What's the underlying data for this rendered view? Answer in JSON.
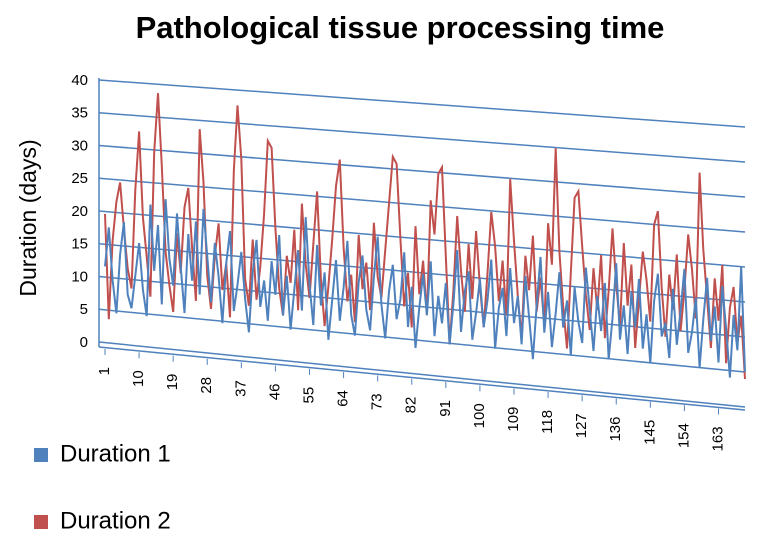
{
  "chart_data": {
    "type": "line",
    "title": "Pathological tissue processing time",
    "y_label": "Duration (days)",
    "x": [
      1,
      2,
      3,
      4,
      5,
      6,
      7,
      8,
      9,
      10,
      11,
      12,
      13,
      14,
      15,
      16,
      17,
      18,
      19,
      20,
      21,
      22,
      23,
      24,
      25,
      26,
      27,
      28,
      29,
      30,
      31,
      32,
      33,
      34,
      35,
      36,
      37,
      38,
      39,
      40,
      41,
      42,
      43,
      44,
      45,
      46,
      47,
      48,
      49,
      50,
      51,
      52,
      53,
      54,
      55,
      56,
      57,
      58,
      59,
      60,
      61,
      62,
      63,
      64,
      65,
      66,
      67,
      68,
      69,
      70,
      71,
      72,
      73,
      74,
      75,
      76,
      77,
      78,
      79,
      80,
      81,
      82,
      83,
      84,
      85,
      86,
      87,
      88,
      89,
      90,
      91,
      92,
      93,
      94,
      95,
      96,
      97,
      98,
      99,
      100,
      101,
      102,
      103,
      104,
      105,
      106,
      107,
      108,
      109,
      110,
      111,
      112,
      113,
      114,
      115,
      116,
      117,
      118,
      119,
      120,
      121,
      122,
      123,
      124,
      125,
      126,
      127,
      128,
      129,
      130,
      131,
      132,
      133,
      134,
      135,
      136,
      137,
      138,
      139,
      140,
      141,
      142,
      143,
      144,
      145,
      146,
      147,
      148,
      149,
      150,
      151,
      152,
      153,
      154,
      155,
      156,
      157,
      158,
      159,
      160,
      161,
      162,
      163,
      164,
      165,
      166,
      167,
      168,
      169,
      170
    ],
    "series": [
      {
        "name": "Duration 1",
        "color": "#4f81bd",
        "values": [
          12,
          18,
          10,
          5,
          14,
          19,
          8,
          6,
          11,
          16,
          9,
          5,
          22,
          12,
          19,
          7,
          23,
          14,
          10,
          21,
          13,
          6,
          18,
          11,
          20,
          9,
          22,
          15,
          8,
          17,
          12,
          5,
          14,
          19,
          7,
          11,
          16,
          9,
          4,
          13,
          18,
          8,
          12,
          6,
          15,
          10,
          19,
          7,
          13,
          5,
          11,
          17,
          8,
          22,
          12,
          6,
          18,
          9,
          14,
          4,
          10,
          16,
          7,
          12,
          19,
          8,
          5,
          13,
          17,
          9,
          6,
          14,
          20,
          10,
          5,
          12,
          16,
          8,
          11,
          18,
          7,
          13,
          4,
          10,
          15,
          9,
          17,
          6,
          12,
          8,
          14,
          5,
          11,
          19,
          7,
          13,
          16,
          6,
          10,
          15,
          8,
          12,
          18,
          5,
          11,
          14,
          7,
          17,
          9,
          13,
          6,
          16,
          10,
          4,
          12,
          19,
          8,
          14,
          6,
          11,
          17,
          9,
          13,
          5,
          15,
          10,
          7,
          18,
          12,
          6,
          14,
          9,
          16,
          5,
          11,
          19,
          8,
          13,
          6,
          15,
          10,
          17,
          7,
          12,
          5,
          14,
          18,
          9,
          11,
          6,
          16,
          8,
          13,
          19,
          7,
          10,
          15,
          5,
          12,
          18,
          9,
          14,
          6,
          17,
          11,
          4,
          13,
          8,
          20,
          5
        ]
      },
      {
        "name": "Duration 2",
        "color": "#c0504d",
        "values": [
          20,
          4,
          16,
          22,
          25,
          18,
          12,
          9,
          24,
          33,
          20,
          14,
          8,
          30,
          39,
          28,
          15,
          10,
          6,
          18,
          12,
          22,
          25,
          16,
          8,
          34,
          26,
          12,
          7,
          15,
          20,
          10,
          14,
          6,
          28,
          38,
          30,
          12,
          8,
          18,
          9,
          14,
          22,
          33,
          32,
          20,
          11,
          7,
          16,
          12,
          20,
          8,
          24,
          15,
          10,
          18,
          26,
          13,
          6,
          12,
          19,
          27,
          31,
          18,
          10,
          14,
          7,
          20,
          12,
          16,
          9,
          22,
          14,
          11,
          18,
          25,
          32,
          31,
          20,
          10,
          15,
          7,
          22,
          12,
          17,
          9,
          26,
          21,
          30,
          31,
          18,
          5,
          13,
          24,
          16,
          10,
          20,
          12,
          22,
          14,
          8,
          16,
          25,
          20,
          12,
          18,
          10,
          30,
          21,
          13,
          7,
          19,
          14,
          22,
          11,
          16,
          9,
          24,
          18,
          35,
          20,
          12,
          6,
          17,
          28,
          29,
          21,
          14,
          9,
          18,
          12,
          20,
          8,
          15,
          24,
          16,
          10,
          22,
          13,
          19,
          7,
          14,
          21,
          17,
          11,
          25,
          27,
          16,
          9,
          18,
          13,
          21,
          10,
          16,
          24,
          19,
          12,
          33,
          22,
          15,
          8,
          18,
          12,
          20,
          6,
          14,
          17,
          9,
          13,
          4
        ]
      }
    ],
    "xlim": [
      1,
      170
    ],
    "xticks": [
      1,
      10,
      19,
      28,
      37,
      46,
      55,
      64,
      73,
      82,
      91,
      100,
      109,
      118,
      127,
      136,
      145,
      154,
      163
    ],
    "ylim": [
      0,
      40
    ],
    "yticks": [
      0,
      5,
      10,
      15,
      20,
      25,
      30,
      35,
      40
    ],
    "grid": true,
    "legend": "bottom-left"
  }
}
